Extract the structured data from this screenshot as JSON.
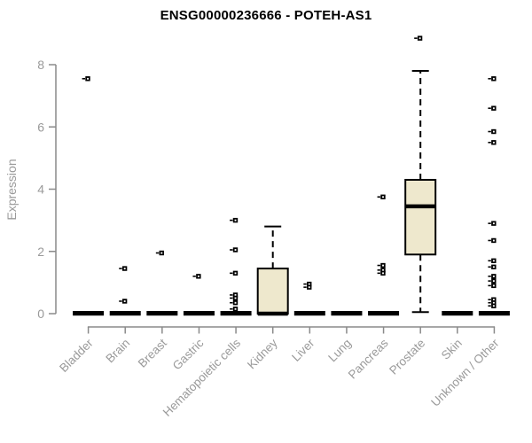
{
  "title": "ENSG00000236666 - POTEH-AS1",
  "chart_data": {
    "type": "boxplot",
    "title": "ENSG00000236666 - POTEH-AS1",
    "xlabel": "",
    "ylabel": "Expression",
    "ylim": [
      0,
      8.9
    ],
    "yticks": [
      0,
      2,
      4,
      6,
      8
    ],
    "grid": false,
    "legend": false,
    "categories": [
      "Bladder",
      "Brain",
      "Breast",
      "Gastric",
      "Hematopoietic cells",
      "Kidney",
      "Liver",
      "Lung",
      "Pancreas",
      "Prostate",
      "Skin",
      "Unknown / Other"
    ],
    "boxes": [
      {
        "category": "Bladder",
        "q1": 0,
        "median": 0,
        "q3": 0,
        "whisker_low": 0,
        "whisker_high": 0,
        "outliers": [
          7.55
        ]
      },
      {
        "category": "Brain",
        "q1": 0,
        "median": 0,
        "q3": 0,
        "whisker_low": 0,
        "whisker_high": 0,
        "outliers": [
          1.45,
          0.4
        ]
      },
      {
        "category": "Breast",
        "q1": 0,
        "median": 0,
        "q3": 0,
        "whisker_low": 0,
        "whisker_high": 0,
        "outliers": [
          1.95
        ]
      },
      {
        "category": "Gastric",
        "q1": 0,
        "median": 0,
        "q3": 0,
        "whisker_low": 0,
        "whisker_high": 0,
        "outliers": [
          1.2
        ]
      },
      {
        "category": "Hematopoietic cells",
        "q1": 0,
        "median": 0,
        "q3": 0,
        "whisker_low": 0,
        "whisker_high": 0,
        "outliers": [
          3.0,
          2.05,
          1.3,
          0.6,
          0.5,
          0.35,
          0.15
        ]
      },
      {
        "category": "Kidney",
        "q1": 0,
        "median": 0,
        "q3": 1.45,
        "whisker_low": 0,
        "whisker_high": 2.8,
        "outliers": []
      },
      {
        "category": "Liver",
        "q1": 0,
        "median": 0,
        "q3": 0,
        "whisker_low": 0,
        "whisker_high": 0,
        "outliers": [
          0.95,
          0.85
        ]
      },
      {
        "category": "Lung",
        "q1": 0,
        "median": 0,
        "q3": 0,
        "whisker_low": 0,
        "whisker_high": 0,
        "outliers": []
      },
      {
        "category": "Pancreas",
        "q1": 0,
        "median": 0,
        "q3": 0,
        "whisker_low": 0,
        "whisker_high": 0,
        "outliers": [
          3.75,
          1.55,
          1.4,
          1.3
        ]
      },
      {
        "category": "Prostate",
        "q1": 1.9,
        "median": 3.45,
        "q3": 4.3,
        "whisker_low": 0.05,
        "whisker_high": 7.8,
        "outliers": [
          8.85
        ]
      },
      {
        "category": "Skin",
        "q1": 0,
        "median": 0,
        "q3": 0,
        "whisker_low": 0,
        "whisker_high": 0,
        "outliers": []
      },
      {
        "category": "Unknown / Other",
        "q1": 0,
        "median": 0,
        "q3": 0,
        "whisker_low": 0,
        "whisker_high": 0,
        "outliers": [
          7.55,
          6.6,
          5.85,
          5.5,
          2.9,
          2.35,
          1.7,
          1.5,
          1.2,
          1.05,
          0.9,
          0.45,
          0.35,
          0.25
        ]
      }
    ],
    "colors": {
      "box_fill": "#EEE8CD",
      "box_stroke": "#000000",
      "median": "#000000",
      "whisker": "#000000",
      "outlier": "#000000",
      "axis": "#8a8a8a",
      "tick_label": "#9a9a9a",
      "title": "#000000",
      "background": "#ffffff"
    }
  }
}
